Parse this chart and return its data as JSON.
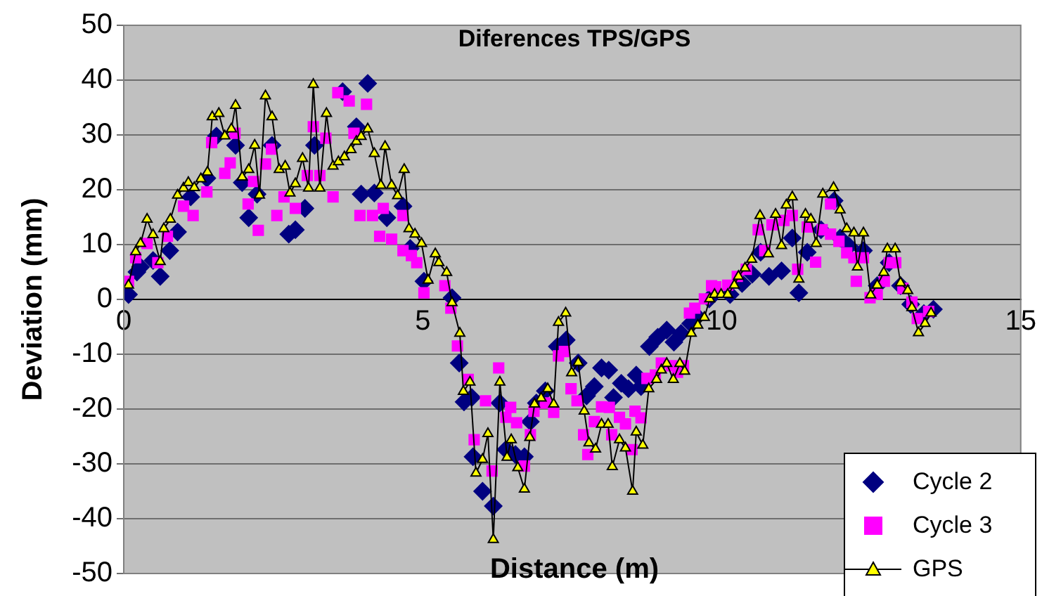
{
  "chart_data": {
    "type": "scatter",
    "title": "Diferences TPS/GPS",
    "xlabel": "Distance (m)",
    "ylabel": "Deviation (mm)",
    "xlim": [
      0,
      15
    ],
    "xticks": [
      0,
      5,
      10,
      15
    ],
    "ylim": [
      -50,
      50
    ],
    "yticks": [
      -50,
      -40,
      -30,
      -20,
      -10,
      0,
      10,
      20,
      30,
      40,
      50
    ],
    "grid": "y",
    "legend": "bottom right",
    "series": [
      {
        "name": "Cycle 2",
        "type": "scatter",
        "marker": "diamond",
        "color": "#000080",
        "x": [
          0.08,
          0.22,
          0.28,
          0.49,
          0.61,
          0.77,
          0.9,
          1.12,
          1.39,
          1.55,
          1.87,
          1.98,
          2.09,
          2.23,
          2.48,
          2.76,
          2.87,
          3.03,
          3.19,
          3.66,
          3.89,
          3.97,
          4.08,
          4.19,
          4.4,
          4.67,
          4.79,
          5.02,
          5.49,
          5.61,
          5.69,
          5.82,
          5.84,
          6.0,
          6.18,
          6.29,
          6.39,
          6.55,
          6.7,
          6.8,
          6.9,
          7.05,
          7.25,
          7.4,
          7.6,
          7.74,
          7.87,
          7.99,
          8.11,
          8.19,
          8.32,
          8.44,
          8.57,
          8.65,
          8.79,
          8.93,
          9.08,
          9.2,
          9.32,
          9.48,
          9.59,
          9.79,
          10.14,
          10.34,
          10.51,
          10.65,
          10.79,
          11.0,
          11.18,
          11.29,
          11.43,
          11.66,
          11.88,
          11.98,
          12.13,
          12.37,
          12.6,
          12.8,
          12.99,
          13.16,
          13.38,
          13.54
        ],
        "values": [
          0.9,
          5,
          5.9,
          7.1,
          4.2,
          8.9,
          12.3,
          18.7,
          22.1,
          29.8,
          28.1,
          21.3,
          14.9,
          19.2,
          28.1,
          11.9,
          12.7,
          16.6,
          28.1,
          37.9,
          31.5,
          19.2,
          39.4,
          19.4,
          14.9,
          17,
          9.3,
          3.3,
          0.3,
          -11.6,
          -18.7,
          -17.9,
          -28.7,
          -35,
          -37.7,
          -18.9,
          -27.4,
          -28.3,
          -28.7,
          -22.3,
          -18.9,
          -16.7,
          -8.6,
          -7.4,
          -11.6,
          -17.6,
          -15.9,
          -12.5,
          -12.9,
          -17.9,
          -15.3,
          -16.3,
          -13.8,
          -15.9,
          -8.6,
          -6.9,
          -5.6,
          -7.8,
          -6.2,
          -4.4,
          -3.1,
          0.1,
          0.9,
          2.9,
          4.6,
          8.6,
          4.2,
          5.2,
          11.2,
          1.2,
          8.6,
          12.7,
          18,
          11.2,
          9.7,
          8.9,
          2.5,
          6.7,
          2.5,
          -0.9,
          -2.6,
          -1.8
        ]
      },
      {
        "name": "Cycle 3",
        "type": "scatter",
        "marker": "square",
        "color": "#ff00ff",
        "x": [
          0.08,
          0.2,
          0.39,
          0.57,
          0.73,
          1.0,
          1.16,
          1.39,
          1.47,
          1.69,
          1.78,
          1.86,
          2.08,
          2.17,
          2.25,
          2.37,
          2.47,
          2.56,
          2.68,
          2.87,
          3.07,
          3.17,
          3.28,
          3.38,
          3.5,
          3.58,
          3.77,
          3.85,
          3.95,
          4.06,
          4.16,
          4.28,
          4.34,
          4.48,
          4.67,
          4.67,
          4.81,
          4.9,
          5.02,
          5.37,
          5.47,
          5.58,
          5.76,
          5.86,
          6.05,
          6.16,
          6.27,
          6.39,
          6.47,
          6.57,
          6.7,
          6.8,
          6.86,
          7.05,
          7.19,
          7.27,
          7.37,
          7.48,
          7.58,
          7.69,
          7.76,
          7.87,
          7.99,
          8.12,
          8.16,
          8.29,
          8.39,
          8.5,
          8.55,
          8.65,
          8.75,
          8.89,
          8.99,
          9.16,
          9.26,
          9.36,
          9.46,
          9.55,
          9.71,
          9.83,
          9.9,
          10.1,
          10.26,
          10.41,
          10.61,
          10.72,
          10.84,
          11.04,
          11.18,
          11.27,
          11.43,
          11.57,
          11.68,
          11.82,
          11.82,
          11.96,
          12.09,
          12.21,
          12.25,
          12.37,
          12.48,
          12.6,
          12.72,
          12.8,
          12.91,
          13.03,
          13.18,
          13.27,
          13.46
        ],
        "values": [
          3.3,
          7.6,
          10.2,
          6.7,
          11.5,
          17,
          15.3,
          19.6,
          28.6,
          23,
          24.9,
          30.3,
          17.4,
          21.5,
          12.6,
          24.7,
          27.4,
          15.3,
          18.7,
          16.6,
          22.6,
          31.5,
          22.6,
          29.4,
          18.7,
          37.7,
          36.2,
          30.3,
          15.3,
          35.6,
          15.3,
          11.5,
          16.6,
          11,
          15.3,
          8.9,
          8,
          6.7,
          1.2,
          2.5,
          -1.6,
          -8.5,
          -14.6,
          -25.6,
          -18.5,
          -31.3,
          -12.5,
          -21.5,
          -19.7,
          -22.5,
          -30.4,
          -24.7,
          -20.4,
          -18.9,
          -20.6,
          -10.3,
          -9.5,
          -16.3,
          -18.5,
          -24.7,
          -28.3,
          -22.3,
          -19.6,
          -19.7,
          -24.7,
          -21.5,
          -22.7,
          -27.4,
          -20.4,
          -21.6,
          -14.4,
          -13.8,
          -11.6,
          -12.1,
          -13.3,
          -12.1,
          -2.5,
          -1.6,
          0.1,
          2.5,
          2.3,
          2.6,
          4.2,
          5.5,
          12.7,
          8.9,
          13.6,
          14.4,
          15.3,
          5.5,
          13.2,
          6.8,
          12.7,
          17.4,
          11.9,
          10.6,
          8.5,
          7.6,
          3.3,
          7.6,
          0.3,
          0.9,
          3.3,
          6.7,
          6.7,
          2,
          -0.5,
          -3.5,
          -2.2
        ]
      },
      {
        "name": "GPS",
        "type": "line",
        "marker": "triangle",
        "line_style": "solid",
        "color": "#000000",
        "x": [
          0.08,
          0.2,
          0.28,
          0.39,
          0.49,
          0.61,
          0.67,
          0.78,
          0.9,
          1.0,
          1.08,
          1.18,
          1.29,
          1.4,
          1.48,
          1.59,
          1.69,
          1.8,
          1.87,
          1.98,
          2.09,
          2.19,
          2.27,
          2.37,
          2.48,
          2.6,
          2.7,
          2.78,
          2.87,
          2.99,
          3.09,
          3.17,
          3.28,
          3.39,
          3.5,
          3.59,
          3.69,
          3.8,
          3.89,
          3.97,
          4.08,
          4.19,
          4.3,
          4.37,
          4.48,
          4.58,
          4.69,
          4.77,
          4.87,
          4.98,
          5.09,
          5.21,
          5.27,
          5.4,
          5.49,
          5.62,
          5.68,
          5.79,
          5.89,
          6.0,
          6.09,
          6.18,
          6.29,
          6.41,
          6.48,
          6.59,
          6.7,
          6.79,
          6.87,
          6.98,
          7.09,
          7.19,
          7.27,
          7.39,
          7.49,
          7.6,
          7.7,
          7.78,
          7.89,
          7.99,
          8.1,
          8.17,
          8.29,
          8.39,
          8.51,
          8.57,
          8.68,
          8.78,
          8.91,
          8.99,
          9.08,
          9.19,
          9.3,
          9.38,
          9.49,
          9.6,
          9.71,
          9.8,
          9.88,
          9.99,
          10.1,
          10.21,
          10.28,
          10.39,
          10.5,
          10.64,
          10.78,
          10.9,
          11.0,
          11.08,
          11.18,
          11.29,
          11.4,
          11.49,
          11.58,
          11.69,
          11.87,
          11.98,
          12.09,
          12.21,
          12.27,
          12.37,
          12.49,
          12.6,
          12.71,
          12.77,
          12.9,
          12.99,
          13.11,
          13.18,
          13.29,
          13.4,
          13.5
        ],
        "values": [
          2.6,
          8.7,
          10.2,
          14.6,
          11.8,
          6.9,
          12.9,
          14.6,
          19,
          20.3,
          21.3,
          20.4,
          22,
          23.2,
          33.3,
          33.9,
          29.8,
          31.1,
          35.4,
          22.3,
          23.7,
          28.1,
          19,
          37.1,
          33.3,
          23.7,
          24.3,
          19.4,
          21.1,
          25.7,
          20.3,
          39.2,
          20.3,
          33.9,
          24.3,
          25.1,
          26,
          27.3,
          28.8,
          29.7,
          31.1,
          26.6,
          20.8,
          27.9,
          20.8,
          18.9,
          23.7,
          12.9,
          11.9,
          10.2,
          3.5,
          8.3,
          6.7,
          4.9,
          -0.6,
          -6.2,
          -16.8,
          -15.1,
          -31.7,
          -29.2,
          -24.5,
          -43.8,
          -15.1,
          -28.8,
          -25.6,
          -30.7,
          -34.6,
          -25.2,
          -19.1,
          -18,
          -16.3,
          -19.1,
          -4.2,
          -2.5,
          -13.4,
          -11.5,
          -20.4,
          -26.2,
          -27.3,
          -22.8,
          -22.8,
          -30.5,
          -25.6,
          -27.1,
          -35,
          -24.2,
          -26.6,
          -16.3,
          -14.6,
          -12.9,
          -11.7,
          -14.6,
          -11.7,
          -13.1,
          -6.2,
          -4.7,
          -3.3,
          0.1,
          0.9,
          0.9,
          0.9,
          2.6,
          4.2,
          5.7,
          7.3,
          15.3,
          8.3,
          15.5,
          9.8,
          17.2,
          18.7,
          3.7,
          15.5,
          14.6,
          10.2,
          19.2,
          20.4,
          16.3,
          12.9,
          12.1,
          5.9,
          12.1,
          0.8,
          2.6,
          4.9,
          9.2,
          9.2,
          3,
          1.6,
          -1.5,
          -6.1,
          -4.4,
          -2.5
        ]
      }
    ]
  }
}
